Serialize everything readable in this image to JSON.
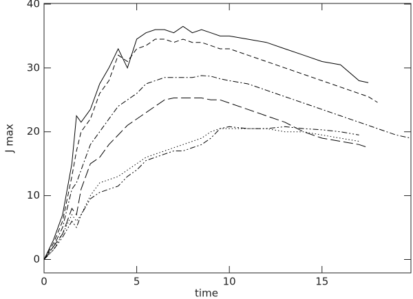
{
  "chart_data": {
    "type": "line",
    "x_label": "time",
    "y_label": "J max",
    "x": [
      0,
      0.5,
      1,
      1.5,
      1.75,
      2,
      2.5,
      3,
      3.5,
      4,
      4.5,
      5,
      5.5,
      6,
      6.5,
      7,
      7.5,
      8,
      8.5,
      9,
      9.5,
      10,
      11,
      12,
      13,
      14,
      15,
      16,
      17,
      17.5,
      18,
      19,
      19.8
    ],
    "series": [
      {
        "color": "#000000",
        "dash": "none",
        "values": [
          0,
          3,
          7,
          15,
          22.5,
          21.5,
          23.5,
          27.5,
          30,
          33,
          30,
          34.5,
          35.5,
          36,
          36,
          35.5,
          36.5,
          35.5,
          36,
          35.5,
          35,
          35,
          34.5,
          34,
          33,
          32,
          31,
          30.5,
          28,
          27.7,
          null,
          null,
          null
        ]
      },
      {
        "color": "#000000",
        "dash": "7,4",
        "values": [
          0,
          2.5,
          6,
          13,
          17,
          20,
          22,
          26,
          28,
          32,
          31,
          33,
          33.5,
          34.5,
          34.5,
          34,
          34.5,
          34,
          34,
          33.5,
          33,
          33,
          32,
          31,
          30,
          29,
          28,
          27,
          26,
          25.5,
          24.6,
          null,
          null
        ]
      },
      {
        "color": "#000000",
        "dash": "8,3,2,3",
        "values": [
          0,
          2,
          5,
          11,
          12,
          14,
          18,
          20,
          22,
          24,
          25,
          26,
          27.5,
          28,
          28.5,
          28.5,
          28.5,
          28.5,
          28.8,
          28.7,
          28.3,
          28,
          27.5,
          26.5,
          25.5,
          24.5,
          23.5,
          22.5,
          21.5,
          21,
          20.5,
          19.5,
          19
        ]
      },
      {
        "color": "#000000",
        "dash": "14,5",
        "values": [
          0,
          2,
          4,
          8,
          7,
          11,
          15,
          16,
          18,
          19.5,
          21,
          22,
          23,
          24,
          25,
          25.3,
          25.3,
          25.3,
          25.3,
          25,
          25,
          24.5,
          23.5,
          22.5,
          21.5,
          20,
          19,
          18.5,
          18,
          17.5,
          null,
          null,
          null
        ]
      },
      {
        "color": "#000000",
        "dash": "1.5,3",
        "values": [
          0,
          1.5,
          4,
          7,
          6,
          7,
          10,
          12,
          12.5,
          13,
          14,
          15,
          16,
          16.5,
          17,
          17.5,
          18,
          18.5,
          19,
          20,
          20.5,
          20.5,
          20.5,
          20.5,
          20,
          20,
          19.5,
          19,
          18.5,
          null,
          null,
          null,
          null
        ]
      },
      {
        "color": "#000000",
        "dash": "8,3,2,3,2,3",
        "values": [
          0,
          1.5,
          3.5,
          6,
          5,
          7,
          9.5,
          10.5,
          11,
          11.5,
          13,
          14,
          15.5,
          16,
          16.5,
          17,
          17,
          17.5,
          18,
          19,
          20.5,
          20.8,
          20.5,
          20.5,
          20.8,
          20.5,
          20.3,
          20,
          19.5,
          null,
          null,
          null,
          null
        ]
      }
    ],
    "xlim": [
      0,
      19.8
    ],
    "ylim": [
      -2.1,
      40.1
    ],
    "xticks": [
      0,
      5,
      10,
      15
    ],
    "yticks": [
      0,
      10,
      20,
      30,
      40
    ]
  }
}
